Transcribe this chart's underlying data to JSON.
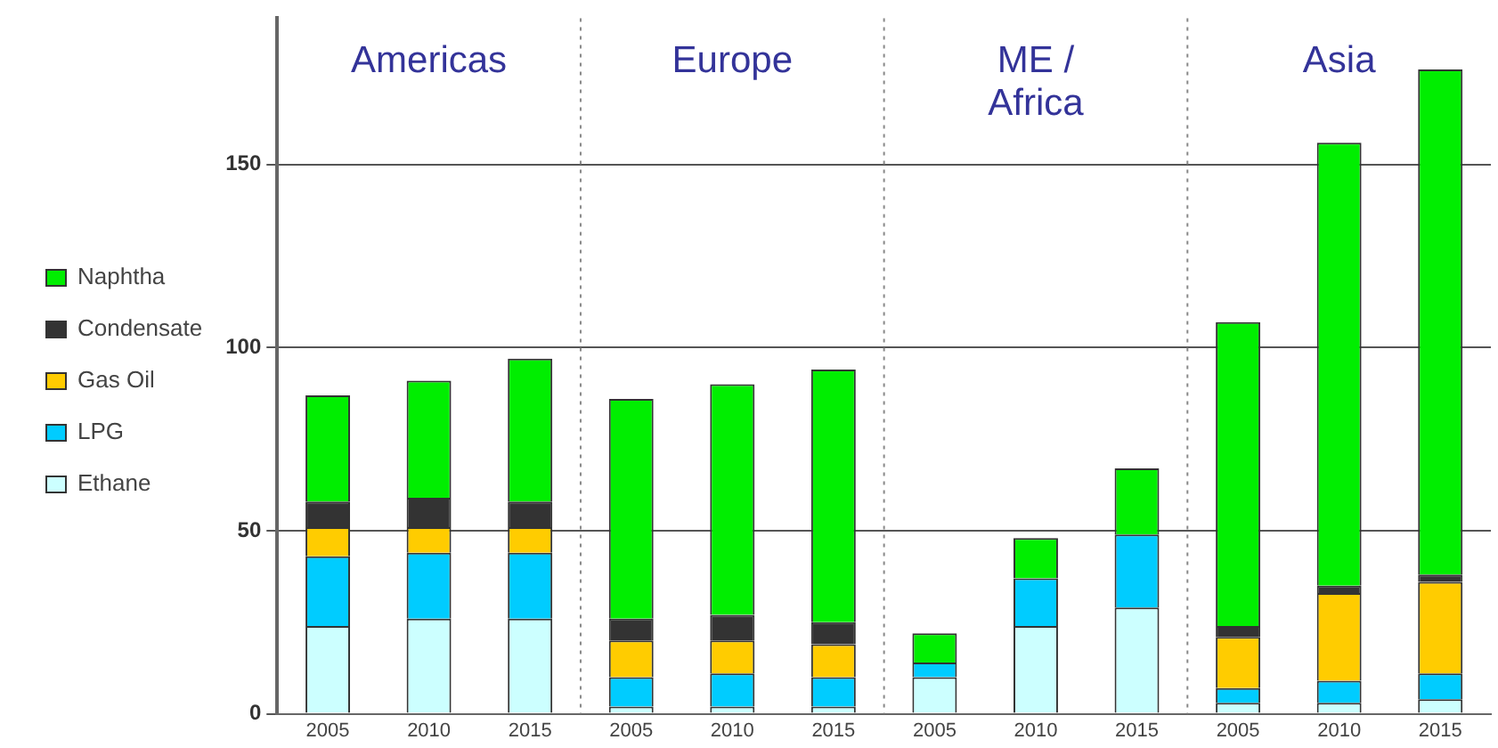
{
  "chart_data": {
    "type": "bar",
    "stacked": true,
    "categories": [
      "2005",
      "2010",
      "2015",
      "2005",
      "2010",
      "2015",
      "2005",
      "2010",
      "2015",
      "2005",
      "2010",
      "2015"
    ],
    "series": [
      {
        "name": "Ethane",
        "color": "#ccffff",
        "values": [
          24,
          26,
          26,
          2,
          2,
          2,
          10,
          24,
          29,
          3,
          3,
          4
        ]
      },
      {
        "name": "LPG",
        "color": "#00ccff",
        "values": [
          19,
          18,
          18,
          8,
          9,
          8,
          4,
          13,
          20,
          4,
          6,
          7
        ]
      },
      {
        "name": "Gas Oil",
        "color": "#ffcc00",
        "values": [
          8,
          7,
          7,
          10,
          9,
          9,
          0,
          0,
          0,
          14,
          24,
          25
        ]
      },
      {
        "name": "Condensate",
        "color": "#333333",
        "values": [
          7,
          8,
          7,
          6,
          7,
          6,
          0,
          0,
          0,
          3,
          2,
          2
        ]
      },
      {
        "name": "Naphtha",
        "color": "#00ee00",
        "values": [
          29,
          32,
          39,
          60,
          63,
          69,
          8,
          11,
          18,
          83,
          121,
          138
        ]
      }
    ],
    "ylim": [
      0,
      190
    ],
    "yticks": [
      0,
      50,
      100,
      150
    ],
    "grid": "y",
    "legend": "left",
    "annotations": [
      "Americas",
      "Europe",
      "ME /\nAfrica",
      "Asia"
    ]
  }
}
